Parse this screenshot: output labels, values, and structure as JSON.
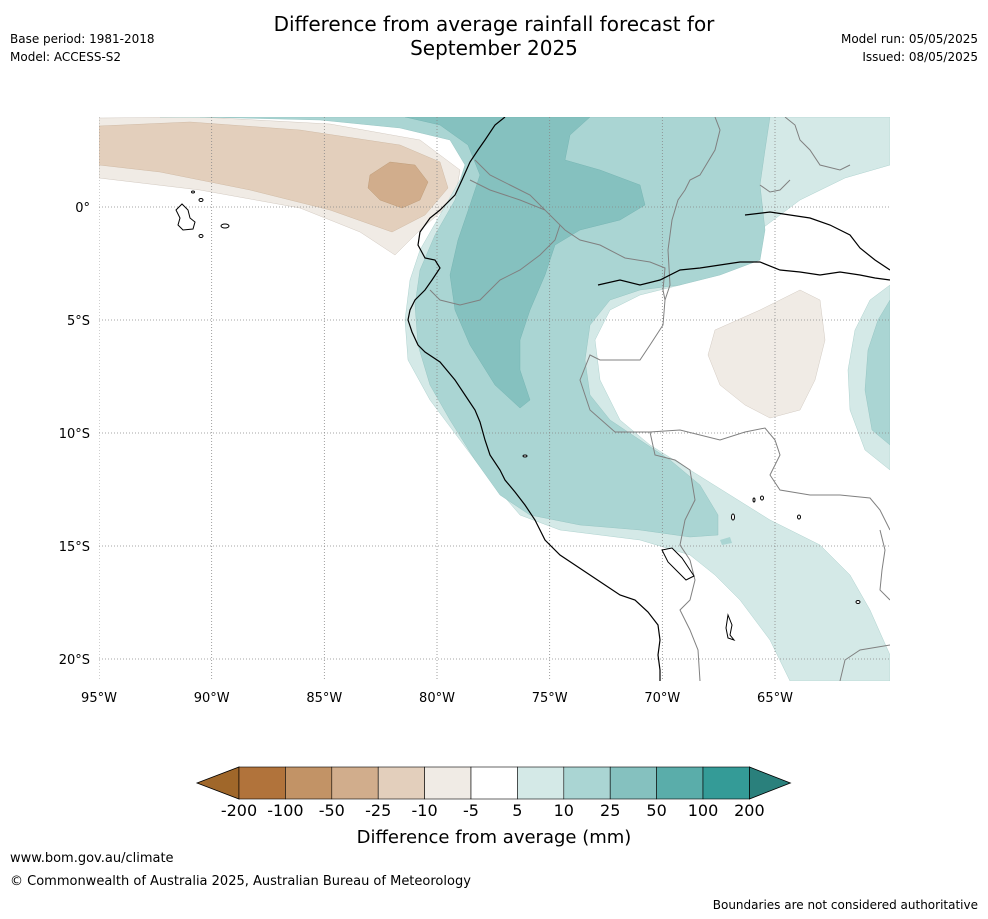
{
  "header": {
    "title_line1": "Difference from average rainfall forecast for",
    "title_line2": "September 2025",
    "base_period": "Base period: 1981-2018",
    "model": "Model: ACCESS-S2",
    "model_run": "Model run: 05/05/2025",
    "issued": "Issued: 08/05/2025"
  },
  "map": {
    "lon_range": [
      -95,
      -60
    ],
    "lat_range": [
      -21,
      4
    ],
    "lon_labels": [
      {
        "lon": -95,
        "label": "95°W"
      },
      {
        "lon": -90,
        "label": "90°W"
      },
      {
        "lon": -85,
        "label": "85°W"
      },
      {
        "lon": -80,
        "label": "80°W"
      },
      {
        "lon": -75,
        "label": "75°W"
      },
      {
        "lon": -70,
        "label": "70°W"
      },
      {
        "lon": -65,
        "label": "65°W"
      }
    ],
    "lat_labels": [
      {
        "lat": 0,
        "label": "0°"
      },
      {
        "lat": -5,
        "label": "5°S"
      },
      {
        "lat": -10,
        "label": "10°S"
      },
      {
        "lat": -15,
        "label": "15°S"
      },
      {
        "lat": -20,
        "label": "20°S"
      }
    ]
  },
  "legend": {
    "title": "Difference from average (mm)",
    "ticks": [
      "-200",
      "-100",
      "-50",
      "-25",
      "-10",
      "-5",
      "5",
      "10",
      "25",
      "50",
      "100",
      "200"
    ],
    "colors": [
      "#a0672a",
      "#b1733b",
      "#c29366",
      "#d1ad8c",
      "#e3cfbc",
      "#f0ebe5",
      "#ffffff",
      "#d4e9e7",
      "#aad5d3",
      "#85c1bf",
      "#5aadaa",
      "#349b97",
      "#2a807c"
    ]
  },
  "footer": {
    "url": "www.bom.gov.au/climate",
    "copyright": "© Commonwealth of Australia 2025, Australian Bureau of Meteorology",
    "note": "Boundaries are not considered authoritative"
  }
}
